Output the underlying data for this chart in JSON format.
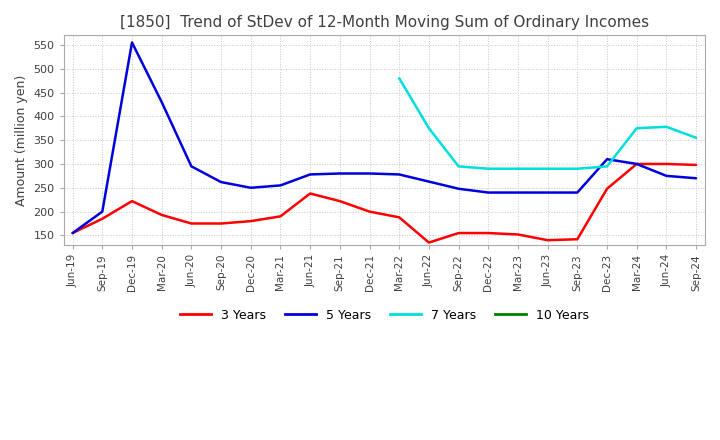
{
  "title": "[1850]  Trend of StDev of 12-Month Moving Sum of Ordinary Incomes",
  "ylabel": "Amount (million yen)",
  "ylim": [
    130,
    570
  ],
  "yticks": [
    150,
    200,
    250,
    300,
    350,
    400,
    450,
    500,
    550
  ],
  "background_color": "#ffffff",
  "grid_color": "#c8c8c8",
  "title_color": "#404040",
  "x_labels": [
    "Jun-19",
    "Sep-19",
    "Dec-19",
    "Mar-20",
    "Jun-20",
    "Sep-20",
    "Dec-20",
    "Mar-21",
    "Jun-21",
    "Sep-21",
    "Dec-21",
    "Mar-22",
    "Jun-22",
    "Sep-22",
    "Dec-22",
    "Mar-23",
    "Jun-23",
    "Sep-23",
    "Dec-23",
    "Mar-24",
    "Jun-24",
    "Sep-24"
  ],
  "series": {
    "3 Years": {
      "color": "#ff0000",
      "xi": [
        0,
        1,
        2,
        3,
        4,
        5,
        6,
        7,
        8,
        9,
        10,
        11,
        12,
        13,
        14,
        15,
        16,
        17,
        18,
        19,
        20,
        21
      ],
      "data_y": [
        155,
        185,
        222,
        193,
        175,
        175,
        180,
        190,
        238,
        222,
        200,
        188,
        135,
        155,
        155,
        152,
        140,
        142,
        248,
        300,
        300,
        298
      ]
    },
    "5 Years": {
      "color": "#0000dd",
      "xi": [
        0,
        1,
        2,
        3,
        4,
        5,
        6,
        7,
        8,
        9,
        10,
        11,
        12,
        13,
        14,
        15,
        16,
        17,
        18,
        19,
        20,
        21
      ],
      "data_y": [
        155,
        200,
        555,
        430,
        295,
        262,
        250,
        255,
        278,
        280,
        280,
        278,
        263,
        248,
        240,
        240,
        240,
        240,
        310,
        300,
        275,
        270
      ]
    },
    "7 Years": {
      "color": "#00dddd",
      "xi": [
        11,
        12,
        13,
        14,
        15,
        16,
        17,
        18,
        19,
        20,
        21
      ],
      "data_y": [
        480,
        375,
        295,
        290,
        290,
        290,
        290,
        295,
        375,
        378,
        355
      ]
    },
    "10 Years": {
      "color": "#008000",
      "xi": [],
      "data_y": []
    }
  }
}
